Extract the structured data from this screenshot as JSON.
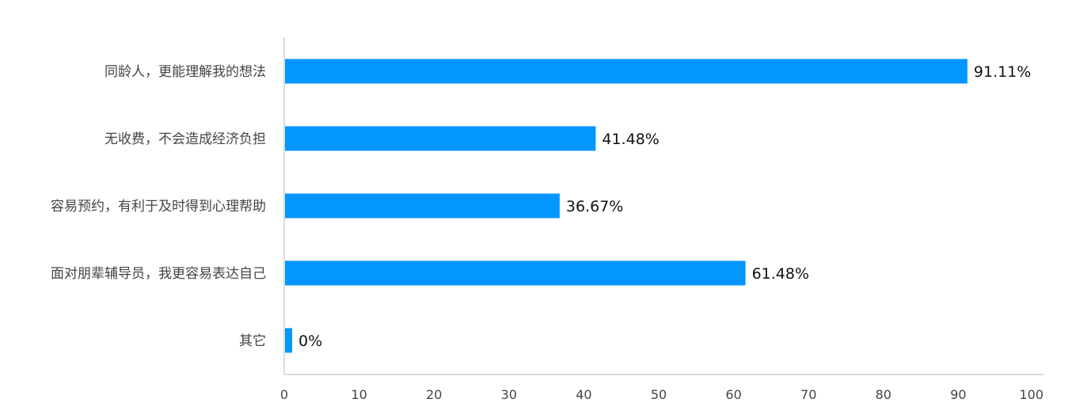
{
  "chart_data": {
    "type": "bar",
    "orientation": "horizontal",
    "categories": [
      "同龄人，更能理解我的想法",
      "无收费，不会造成经济负担",
      "容易预约，有利于及时得到心理帮助",
      "面对朋辈辅导员，我更容易表达自己",
      "其它"
    ],
    "values": [
      91.11,
      41.48,
      36.67,
      61.48,
      0
    ],
    "value_labels": [
      "91.11%",
      "41.48%",
      "36.67%",
      "61.48%",
      "0%"
    ],
    "xlim": [
      0,
      100
    ],
    "xticks": [
      "0",
      "10",
      "20",
      "30",
      "40",
      "50",
      "60",
      "70",
      "80",
      "90",
      "100"
    ],
    "grid": false,
    "legend": "none",
    "bar_color": "#0396FF",
    "axis_color": "#C8D3DC"
  }
}
